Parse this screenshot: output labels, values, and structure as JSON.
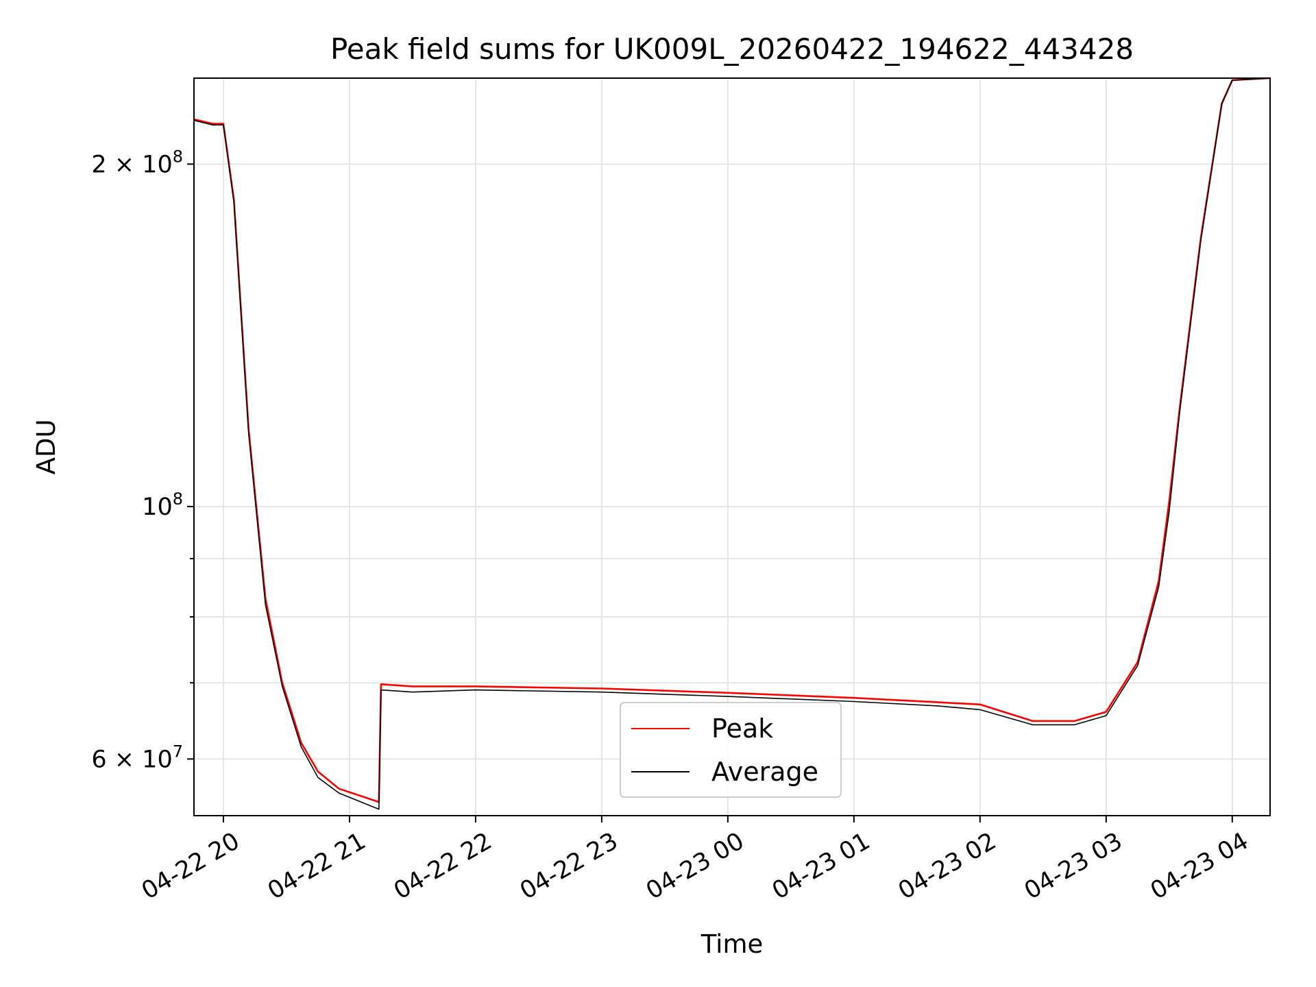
{
  "chart_data": {
    "type": "line",
    "title": "Peak field sums for UK009L_20260422_194622_443428",
    "xlabel": "Time",
    "ylabel": "ADU",
    "yscale": "log",
    "ylim": [
      53500000,
      238000000
    ],
    "xlim": [
      "2026-04-22 19:46",
      "2026-04-23 04:18"
    ],
    "grid": true,
    "legend": {
      "placement": "lower center",
      "entries": [
        "Peak",
        "Average"
      ]
    },
    "x_ticks": [
      "04-22 20",
      "04-22 21",
      "04-22 22",
      "04-22 23",
      "04-23 00",
      "04-23 01",
      "04-23 02",
      "04-23 03",
      "04-23 04"
    ],
    "y_ticks": [
      {
        "value": 60000000,
        "mantissa": "6",
        "times": "×",
        "base": "10",
        "exp": "7"
      },
      {
        "value": 100000000,
        "mantissa": "",
        "times": "",
        "base": "10",
        "exp": "8"
      },
      {
        "value": 200000000,
        "mantissa": "2",
        "times": "×",
        "base": "10",
        "exp": "8"
      }
    ],
    "y_minor_ticks": [
      70000000,
      80000000,
      90000000
    ],
    "series": [
      {
        "name": "Peak",
        "color": "#ff0000",
        "x": [
          "2026-04-22 19:46",
          "2026-04-22 19:55",
          "2026-04-22 20:00",
          "2026-04-22 20:05",
          "2026-04-22 20:12",
          "2026-04-22 20:20",
          "2026-04-22 20:28",
          "2026-04-22 20:37",
          "2026-04-22 20:45",
          "2026-04-22 20:55",
          "2026-04-22 21:14",
          "2026-04-22 21:15",
          "2026-04-22 21:30",
          "2026-04-22 22:00",
          "2026-04-22 23:00",
          "2026-04-23 00:00",
          "2026-04-23 01:00",
          "2026-04-23 01:40",
          "2026-04-23 02:00",
          "2026-04-23 02:25",
          "2026-04-23 02:45",
          "2026-04-23 03:00",
          "2026-04-23 03:15",
          "2026-04-23 03:25",
          "2026-04-23 03:30",
          "2026-04-23 03:35",
          "2026-04-23 03:45",
          "2026-04-23 03:55",
          "2026-04-23 04:00",
          "2026-04-23 04:18"
        ],
        "y": [
          219000000,
          217000000,
          217000000,
          186000000,
          117000000,
          83000000,
          70000000,
          62000000,
          58500000,
          56500000,
          55000000,
          69800000,
          69500000,
          69500000,
          69200000,
          68600000,
          67900000,
          67300000,
          67000000,
          64800000,
          64800000,
          66000000,
          73000000,
          86000000,
          101000000,
          122000000,
          172000000,
          226000000,
          237000000,
          238000000
        ]
      },
      {
        "name": "Average",
        "color": "#000000",
        "x": [
          "2026-04-22 19:46",
          "2026-04-22 19:55",
          "2026-04-22 20:00",
          "2026-04-22 20:05",
          "2026-04-22 20:12",
          "2026-04-22 20:20",
          "2026-04-22 20:28",
          "2026-04-22 20:37",
          "2026-04-22 20:45",
          "2026-04-22 20:55",
          "2026-04-22 21:14",
          "2026-04-22 21:15",
          "2026-04-22 21:30",
          "2026-04-22 22:00",
          "2026-04-22 23:00",
          "2026-04-23 00:00",
          "2026-04-23 01:00",
          "2026-04-23 01:40",
          "2026-04-23 02:00",
          "2026-04-23 02:25",
          "2026-04-23 02:45",
          "2026-04-23 03:00",
          "2026-04-23 03:15",
          "2026-04-23 03:25",
          "2026-04-23 03:30",
          "2026-04-23 03:35",
          "2026-04-23 03:45",
          "2026-04-23 03:55",
          "2026-04-23 04:00",
          "2026-04-23 04:18"
        ],
        "y": [
          218500000,
          216500000,
          216500000,
          185000000,
          116000000,
          82000000,
          69500000,
          61500000,
          57800000,
          56000000,
          54200000,
          69000000,
          68700000,
          69000000,
          68700000,
          68100000,
          67400000,
          66800000,
          66300000,
          64300000,
          64300000,
          65500000,
          72500000,
          85000000,
          99000000,
          121000000,
          171000000,
          226000000,
          237000000,
          238000000
        ]
      }
    ]
  }
}
